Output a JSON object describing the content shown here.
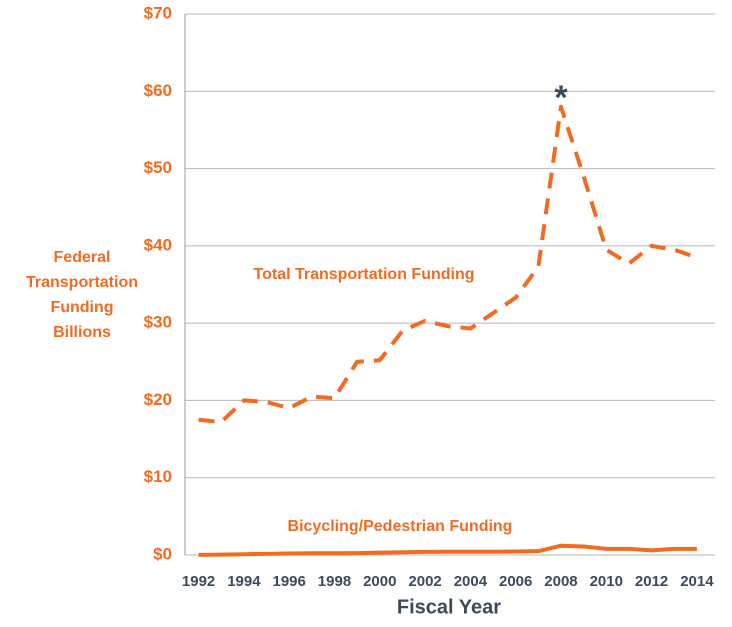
{
  "chart_data": {
    "type": "line",
    "x": [
      1992,
      1993,
      1994,
      1995,
      1996,
      1997,
      1998,
      1999,
      2000,
      2001,
      2002,
      2003,
      2004,
      2005,
      2006,
      2007,
      2008,
      2009,
      2010,
      2011,
      2012,
      2013,
      2014
    ],
    "series": [
      {
        "name": "Total Transportation Funding",
        "color": "#f26b21",
        "dash": true,
        "values": [
          17.5,
          17.2,
          20,
          19.8,
          19,
          20.5,
          20.3,
          25,
          25.2,
          29,
          30.3,
          29.6,
          29.3,
          31.3,
          33.3,
          37.3,
          58,
          49,
          39.5,
          37.7,
          40,
          39.5,
          38.5
        ]
      },
      {
        "name": "Bicycling/Pedestrian Funding",
        "color": "#f26b21",
        "dash": false,
        "values": [
          0.02,
          0.05,
          0.1,
          0.15,
          0.2,
          0.22,
          0.22,
          0.25,
          0.3,
          0.35,
          0.4,
          0.42,
          0.42,
          0.42,
          0.45,
          0.5,
          1.2,
          1.1,
          0.8,
          0.8,
          0.6,
          0.8,
          0.8
        ]
      }
    ],
    "ylim": [
      0,
      70
    ],
    "yticks": [
      {
        "value": 0,
        "label": "$0"
      },
      {
        "value": 10,
        "label": "$10"
      },
      {
        "value": 20,
        "label": "$20"
      },
      {
        "value": 30,
        "label": "$30"
      },
      {
        "value": 40,
        "label": "$40"
      },
      {
        "value": 50,
        "label": "$50"
      },
      {
        "value": 60,
        "label": "$60"
      },
      {
        "value": 70,
        "label": "$70"
      }
    ],
    "xlim": [
      1991.4,
      2014.8
    ],
    "xticks": [
      1992,
      1994,
      1996,
      1998,
      2000,
      2002,
      2004,
      2006,
      2008,
      2010,
      2012,
      2014
    ],
    "ylabel": [
      "Federal",
      "Transportation",
      "Funding",
      "Billions"
    ],
    "xlabel": "Fiscal Year",
    "annotation": "*",
    "grid": true
  }
}
